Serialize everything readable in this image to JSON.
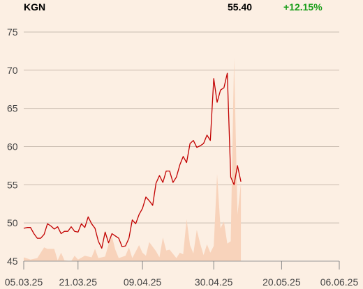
{
  "header": {
    "ticker": "KGN",
    "price": "55.40",
    "change": "+12.15%"
  },
  "colors": {
    "background": "#fcefe3",
    "price_line": "#c20000",
    "volume_fill": "#f8d3bb",
    "grid": "#c9bcb0",
    "change_positive": "#1a9e1a"
  },
  "chart_data": {
    "type": "line",
    "title": "",
    "xlabel": "",
    "ylabel": "",
    "ylim": [
      45,
      77
    ],
    "yticks": [
      45,
      50,
      55,
      60,
      65,
      70,
      75
    ],
    "x_range": [
      "2025-03-05",
      "2025-06-06"
    ],
    "xticks": [
      {
        "date": "2025-03-05",
        "label": "05.03.25"
      },
      {
        "date": "2025-03-21",
        "label": "21.03.25"
      },
      {
        "date": "2025-04-09",
        "label": "09.04.25"
      },
      {
        "date": "2025-04-30",
        "label": "30.04.25"
      },
      {
        "date": "2025-05-20",
        "label": "20.05.25"
      },
      {
        "date": "2025-06-06",
        "label": "06.06.25"
      }
    ],
    "grid": true,
    "series": [
      {
        "kind": "price",
        "points": [
          [
            "2025-03-05",
            49.3
          ],
          [
            "2025-03-06",
            49.4
          ],
          [
            "2025-03-07",
            49.4
          ],
          [
            "2025-03-08",
            48.6
          ],
          [
            "2025-03-09",
            48.0
          ],
          [
            "2025-03-10",
            48.0
          ],
          [
            "2025-03-11",
            48.5
          ],
          [
            "2025-03-12",
            49.9
          ],
          [
            "2025-03-13",
            49.6
          ],
          [
            "2025-03-14",
            49.2
          ],
          [
            "2025-03-15",
            49.5
          ],
          [
            "2025-03-16",
            48.6
          ],
          [
            "2025-03-17",
            48.9
          ],
          [
            "2025-03-18",
            48.9
          ],
          [
            "2025-03-19",
            49.5
          ],
          [
            "2025-03-20",
            48.9
          ],
          [
            "2025-03-21",
            48.8
          ],
          [
            "2025-03-22",
            49.9
          ],
          [
            "2025-03-23",
            49.4
          ],
          [
            "2025-03-24",
            50.8
          ],
          [
            "2025-03-25",
            49.9
          ],
          [
            "2025-03-26",
            49.3
          ],
          [
            "2025-03-27",
            47.6
          ],
          [
            "2025-03-28",
            46.7
          ],
          [
            "2025-03-29",
            48.8
          ],
          [
            "2025-03-30",
            47.4
          ],
          [
            "2025-03-31",
            48.6
          ],
          [
            "2025-04-01",
            48.3
          ],
          [
            "2025-04-02",
            48.0
          ],
          [
            "2025-04-03",
            46.9
          ],
          [
            "2025-04-04",
            47.0
          ],
          [
            "2025-04-05",
            48.0
          ],
          [
            "2025-04-06",
            50.4
          ],
          [
            "2025-04-07",
            49.9
          ],
          [
            "2025-04-08",
            51.1
          ],
          [
            "2025-04-09",
            51.9
          ],
          [
            "2025-04-10",
            53.4
          ],
          [
            "2025-04-11",
            52.9
          ],
          [
            "2025-04-12",
            52.3
          ],
          [
            "2025-04-13",
            55.2
          ],
          [
            "2025-04-14",
            56.2
          ],
          [
            "2025-04-15",
            55.3
          ],
          [
            "2025-04-16",
            56.8
          ],
          [
            "2025-04-17",
            56.8
          ],
          [
            "2025-04-18",
            55.3
          ],
          [
            "2025-04-19",
            56.0
          ],
          [
            "2025-04-20",
            57.6
          ],
          [
            "2025-04-21",
            58.7
          ],
          [
            "2025-04-22",
            57.9
          ],
          [
            "2025-04-23",
            60.4
          ],
          [
            "2025-04-24",
            60.8
          ],
          [
            "2025-04-25",
            59.9
          ],
          [
            "2025-04-26",
            60.1
          ],
          [
            "2025-04-27",
            60.4
          ],
          [
            "2025-04-28",
            61.5
          ],
          [
            "2025-04-29",
            60.8
          ],
          [
            "2025-04-30",
            68.9
          ],
          [
            "2025-05-01",
            65.8
          ],
          [
            "2025-05-02",
            67.4
          ],
          [
            "2025-05-03",
            67.7
          ],
          [
            "2025-05-04",
            69.6
          ],
          [
            "2025-05-05",
            56.0
          ],
          [
            "2025-05-06",
            55.0
          ],
          [
            "2025-05-07",
            57.5
          ],
          [
            "2025-05-08",
            55.4
          ]
        ]
      },
      {
        "kind": "volume",
        "points": [
          [
            "2025-03-05",
            45.5
          ],
          [
            "2025-03-07",
            45.2
          ],
          [
            "2025-03-09",
            45.4
          ],
          [
            "2025-03-11",
            46.8
          ],
          [
            "2025-03-12",
            46.6
          ],
          [
            "2025-03-14",
            46.6
          ],
          [
            "2025-03-15",
            45.1
          ],
          [
            "2025-03-16",
            46.1
          ],
          [
            "2025-03-17",
            45.1
          ],
          [
            "2025-03-19",
            45.0
          ],
          [
            "2025-03-20",
            45.7
          ],
          [
            "2025-03-21",
            45.2
          ],
          [
            "2025-03-23",
            45.7
          ],
          [
            "2025-03-25",
            45.5
          ],
          [
            "2025-03-26",
            46.6
          ],
          [
            "2025-03-27",
            45.4
          ],
          [
            "2025-03-29",
            45.6
          ],
          [
            "2025-03-30",
            47.2
          ],
          [
            "2025-03-31",
            48.2
          ],
          [
            "2025-04-01",
            46.5
          ],
          [
            "2025-04-02",
            45.4
          ],
          [
            "2025-04-04",
            45.7
          ],
          [
            "2025-04-05",
            46.8
          ],
          [
            "2025-04-06",
            45.4
          ],
          [
            "2025-04-08",
            47.1
          ],
          [
            "2025-04-09",
            46.1
          ],
          [
            "2025-04-10",
            45.7
          ],
          [
            "2025-04-11",
            47.5
          ],
          [
            "2025-04-13",
            46.3
          ],
          [
            "2025-04-14",
            45.5
          ],
          [
            "2025-04-15",
            48.1
          ],
          [
            "2025-04-16",
            46.4
          ],
          [
            "2025-04-17",
            46.5
          ],
          [
            "2025-04-19",
            45.4
          ],
          [
            "2025-04-20",
            46.1
          ],
          [
            "2025-04-21",
            45.9
          ],
          [
            "2025-04-22",
            50.5
          ],
          [
            "2025-04-23",
            47.1
          ],
          [
            "2025-04-24",
            46.0
          ],
          [
            "2025-04-25",
            49.1
          ],
          [
            "2025-04-26",
            47.3
          ],
          [
            "2025-04-27",
            45.8
          ],
          [
            "2025-04-28",
            47.2
          ],
          [
            "2025-04-29",
            46.1
          ],
          [
            "2025-04-30",
            47.0
          ],
          [
            "2025-05-01",
            56.4
          ],
          [
            "2025-05-02",
            49.3
          ],
          [
            "2025-05-03",
            50.2
          ],
          [
            "2025-05-04",
            47.3
          ],
          [
            "2025-05-05",
            47.6
          ],
          [
            "2025-05-06",
            71.6
          ],
          [
            "2025-05-07",
            51.1
          ],
          [
            "2025-05-08",
            55.2
          ]
        ]
      }
    ]
  }
}
